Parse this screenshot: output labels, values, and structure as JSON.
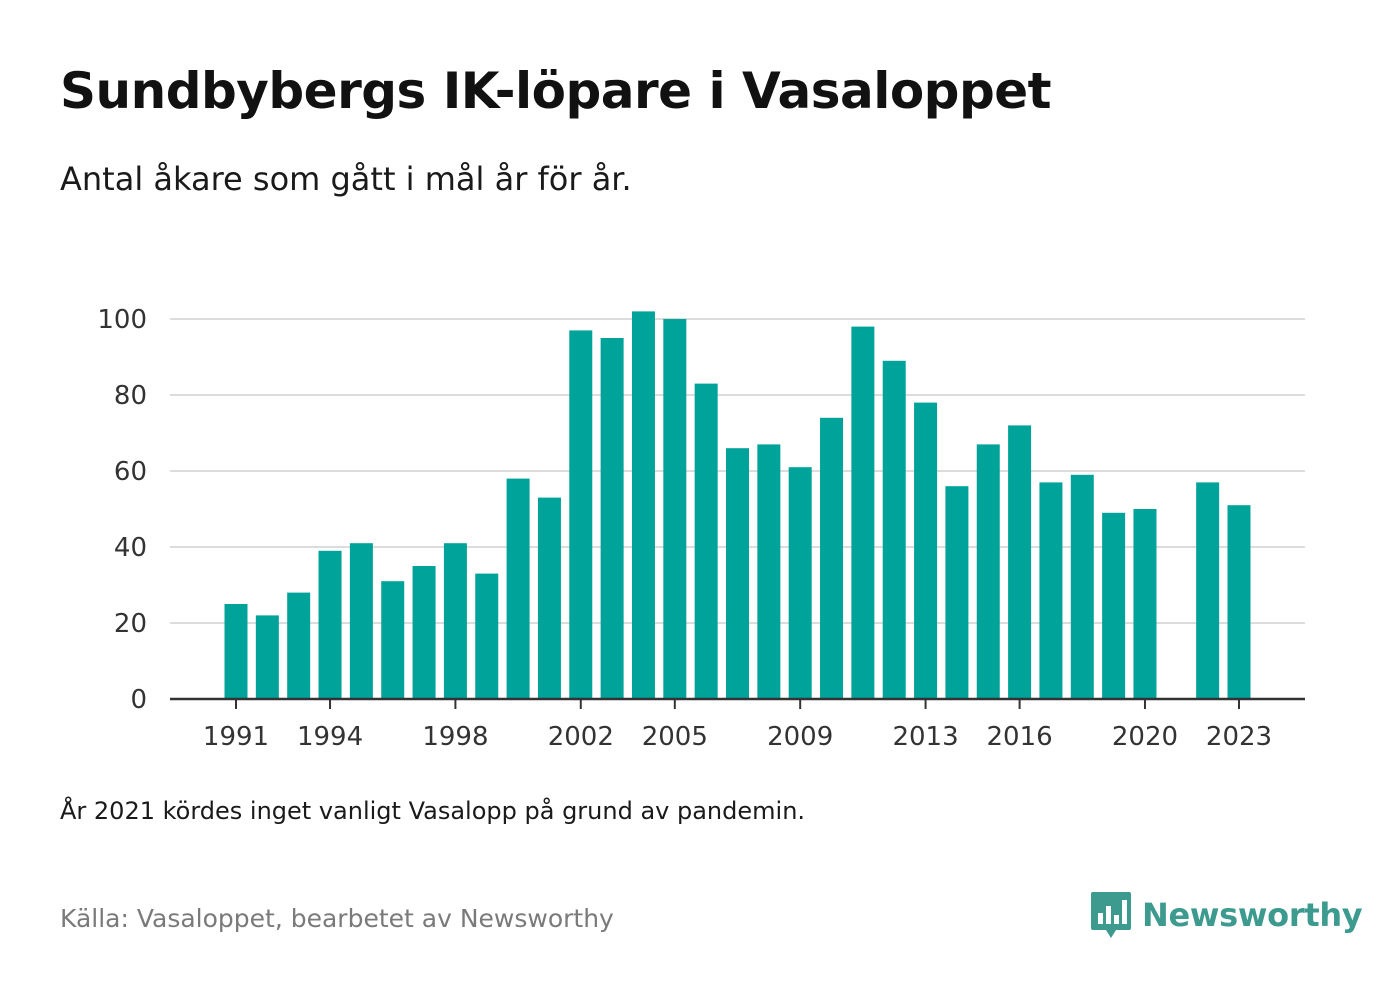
{
  "title": "Sundbybergs IK-löpare i Vasaloppet",
  "subtitle": "Antal åkare som gått i mål år för år.",
  "footnote": "År 2021 kördes inget vanligt Vasalopp på grund av pandemin.",
  "source": "Källa: Vasaloppet, bearbetet av Newsworthy",
  "brand": {
    "name": "Newsworthy",
    "icon": "newsworthy-logo-icon",
    "color": "#3d9a8e"
  },
  "chart_data": {
    "type": "bar",
    "color": "#00a39a",
    "x": [
      1991,
      1992,
      1993,
      1994,
      1995,
      1996,
      1997,
      1998,
      1999,
      2000,
      2001,
      2002,
      2003,
      2004,
      2005,
      2006,
      2007,
      2008,
      2009,
      2010,
      2011,
      2012,
      2013,
      2014,
      2015,
      2016,
      2017,
      2018,
      2019,
      2020,
      2021,
      2022,
      2023
    ],
    "values": [
      25,
      22,
      28,
      39,
      41,
      31,
      35,
      41,
      33,
      58,
      53,
      97,
      95,
      102,
      100,
      83,
      66,
      67,
      61,
      74,
      98,
      89,
      78,
      56,
      67,
      72,
      57,
      59,
      49,
      50,
      null,
      57,
      51
    ],
    "x_tick_labels": [
      1991,
      1994,
      1998,
      2002,
      2005,
      2009,
      2013,
      2016,
      2020,
      2023
    ],
    "y_ticks": [
      0,
      20,
      40,
      60,
      80,
      100
    ],
    "ylim": [
      0,
      105
    ],
    "grid": true,
    "legend": "none",
    "xlabel": "",
    "ylabel": ""
  }
}
